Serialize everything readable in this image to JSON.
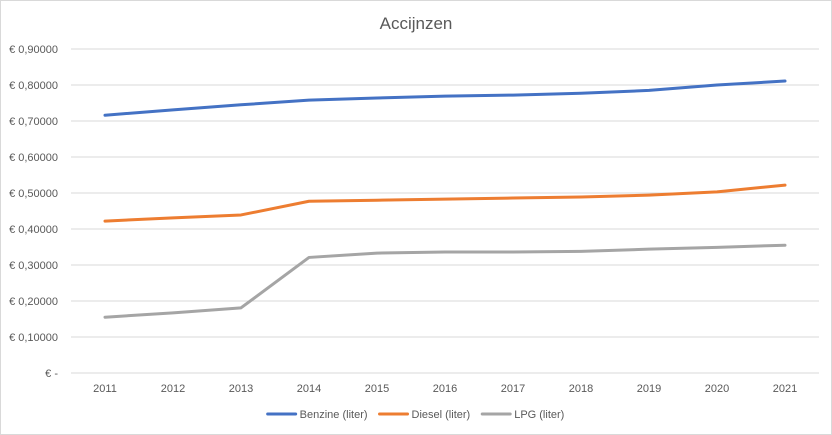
{
  "chart_data": {
    "type": "line",
    "title": "Accijnzen",
    "xlabel": "",
    "ylabel": "",
    "categories": [
      "2011",
      "2012",
      "2013",
      "2014",
      "2015",
      "2016",
      "2017",
      "2018",
      "2019",
      "2020",
      "2021"
    ],
    "ylim": [
      0,
      0.9
    ],
    "yticks": [
      0,
      0.1,
      0.2,
      0.3,
      0.4,
      0.5,
      0.6,
      0.7,
      0.8,
      0.9
    ],
    "ytick_labels": [
      "€ -",
      "€ 0,10000",
      "€ 0,20000",
      "€ 0,30000",
      "€ 0,40000",
      "€ 0,50000",
      "€ 0,60000",
      "€ 0,70000",
      "€ 0,80000",
      "€ 0,90000"
    ],
    "grid": true,
    "legend_position": "bottom",
    "series": [
      {
        "name": "Benzine (liter)",
        "color": "#4472C4",
        "values": [
          0.716,
          0.731,
          0.745,
          0.758,
          0.764,
          0.769,
          0.772,
          0.777,
          0.785,
          0.8,
          0.811
        ]
      },
      {
        "name": "Diesel (liter)",
        "color": "#ED7D31",
        "values": [
          0.422,
          0.431,
          0.439,
          0.477,
          0.48,
          0.483,
          0.486,
          0.489,
          0.494,
          0.503,
          0.522
        ]
      },
      {
        "name": "LPG (liter)",
        "color": "#A5A5A5",
        "values": [
          0.155,
          0.167,
          0.181,
          0.321,
          0.333,
          0.336,
          0.336,
          0.338,
          0.344,
          0.349,
          0.355
        ]
      }
    ]
  }
}
